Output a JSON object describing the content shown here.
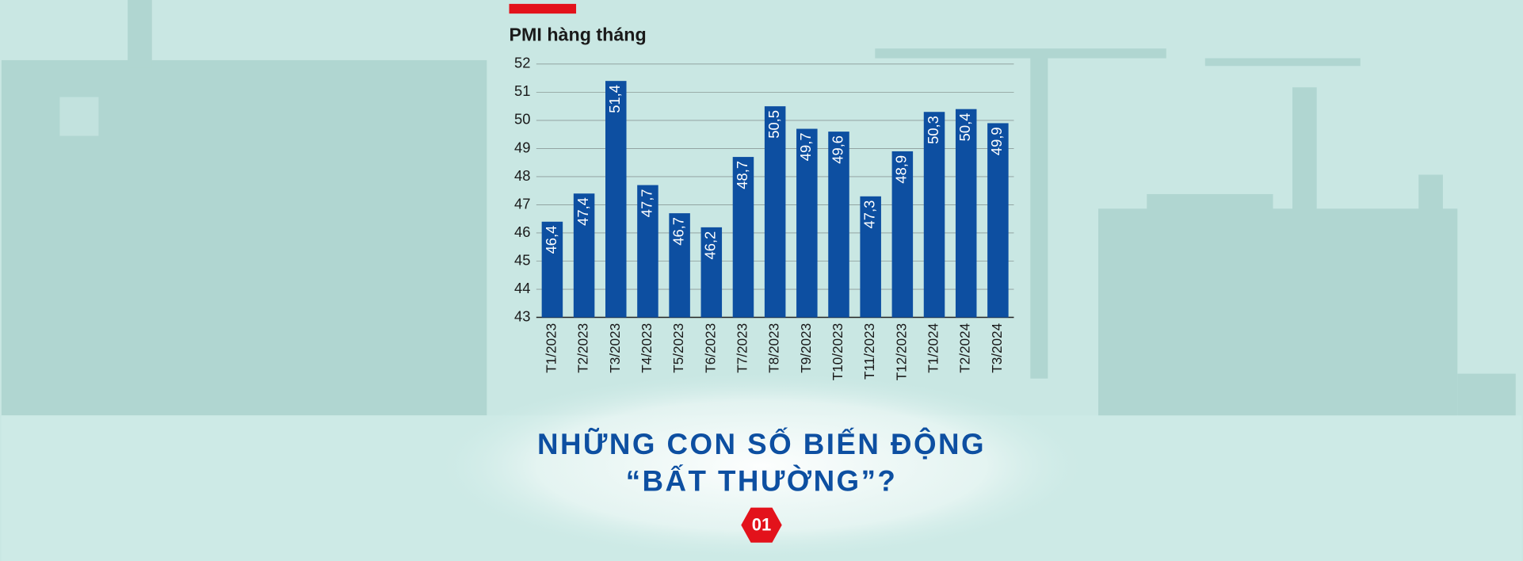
{
  "chart_data": {
    "type": "bar",
    "title": "PMI hàng tháng",
    "categories": [
      "T1/2023",
      "T2/2023",
      "T3/2023",
      "T4/2023",
      "T5/2023",
      "T6/2023",
      "T7/2023",
      "T8/2023",
      "T9/2023",
      "T10/2023",
      "T11/2023",
      "T12/2023",
      "T1/2024",
      "T2/2024",
      "T3/2024"
    ],
    "values": [
      46.4,
      47.4,
      51.4,
      47.7,
      46.7,
      46.2,
      48.7,
      50.5,
      49.7,
      49.6,
      47.3,
      48.9,
      50.3,
      50.4,
      49.9
    ],
    "value_labels": [
      "46,4",
      "47,4",
      "51,4",
      "47,7",
      "46,7",
      "46,2",
      "48,7",
      "50,5",
      "49,7",
      "49,6",
      "47,3",
      "48,9",
      "50,3",
      "50,4",
      "49,9"
    ],
    "color": "#0d4fa1",
    "ylim": [
      43,
      52
    ],
    "yticks": [
      43,
      44,
      45,
      46,
      47,
      48,
      49,
      50,
      51,
      52
    ],
    "grid": true
  },
  "headline": [
    "NHỮNG CON SỐ BIẾN ĐỘNG",
    "“BẤT THƯỜNG”?"
  ],
  "badge": "01"
}
